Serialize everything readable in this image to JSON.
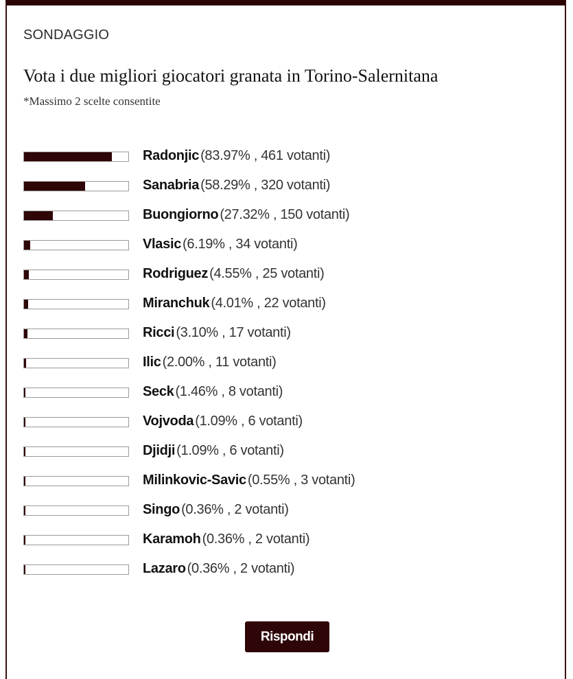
{
  "poll": {
    "kicker": "SONDAGGIO",
    "question": "Vota i due migliori giocatori granata in Torino-Salernitana",
    "note": "*Massimo 2 scelte consentite",
    "submit_label": "Rispondi",
    "accent_color": "#2e0607",
    "options": [
      {
        "name": "Radonjic",
        "percent": 83.97,
        "stats": "(83.97% , 461 votanti)",
        "votes": 461
      },
      {
        "name": "Sanabria",
        "percent": 58.29,
        "stats": "(58.29% , 320 votanti)",
        "votes": 320
      },
      {
        "name": "Buongiorno",
        "percent": 27.32,
        "stats": "(27.32% , 150 votanti)",
        "votes": 150
      },
      {
        "name": "Vlasic",
        "percent": 6.19,
        "stats": "(6.19% , 34 votanti)",
        "votes": 34
      },
      {
        "name": "Rodriguez",
        "percent": 4.55,
        "stats": "(4.55% , 25 votanti)",
        "votes": 25
      },
      {
        "name": "Miranchuk",
        "percent": 4.01,
        "stats": "(4.01% , 22 votanti)",
        "votes": 22
      },
      {
        "name": "Ricci",
        "percent": 3.1,
        "stats": "(3.10% , 17 votanti)",
        "votes": 17
      },
      {
        "name": "Ilic",
        "percent": 2.0,
        "stats": "(2.00% , 11 votanti)",
        "votes": 11
      },
      {
        "name": "Seck",
        "percent": 1.46,
        "stats": "(1.46% , 8 votanti)",
        "votes": 8
      },
      {
        "name": "Vojvoda",
        "percent": 1.09,
        "stats": "(1.09% , 6 votanti)",
        "votes": 6
      },
      {
        "name": "Djidji",
        "percent": 1.09,
        "stats": "(1.09% , 6 votanti)",
        "votes": 6
      },
      {
        "name": "Milinkovic-Savic",
        "percent": 0.55,
        "stats": "(0.55% , 3 votanti)",
        "votes": 3
      },
      {
        "name": "Singo",
        "percent": 0.36,
        "stats": "(0.36% , 2 votanti)",
        "votes": 2
      },
      {
        "name": "Karamoh",
        "percent": 0.36,
        "stats": "(0.36% , 2 votanti)",
        "votes": 2
      },
      {
        "name": "Lazaro",
        "percent": 0.36,
        "stats": "(0.36% , 2 votanti)",
        "votes": 2
      }
    ]
  }
}
